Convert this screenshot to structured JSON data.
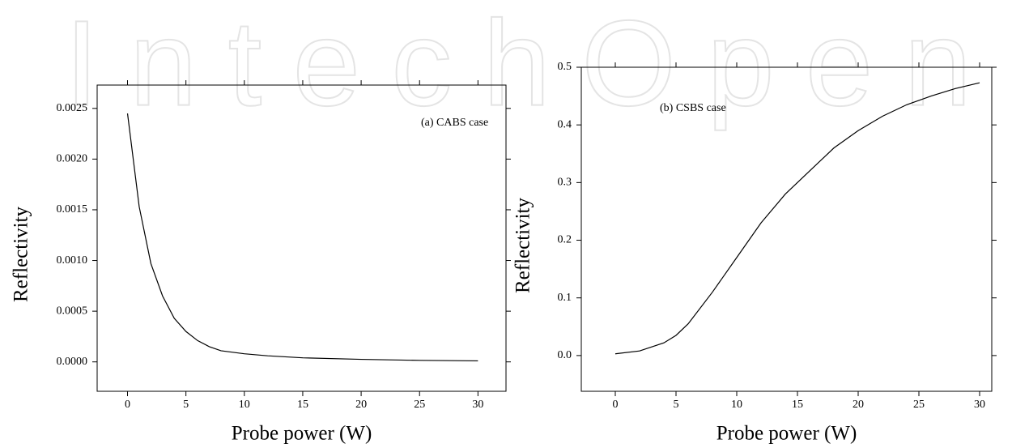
{
  "watermark": "IntechOpen",
  "chart_data": [
    {
      "type": "line",
      "annotation": "(a) CABS case",
      "xlabel": "Probe power (W)",
      "ylabel": "Reflectivity",
      "color": "#000000",
      "x": [
        0,
        1,
        2,
        3,
        4,
        5,
        6,
        7,
        8,
        10,
        12,
        15,
        20,
        25,
        30
      ],
      "values": [
        0.00245,
        0.00153,
        0.00097,
        0.00065,
        0.00043,
        0.0003,
        0.00021,
        0.00015,
        0.00011,
        8e-05,
        6e-05,
        4e-05,
        2.5e-05,
        1.5e-05,
        1e-05
      ],
      "xlim": [
        -2.6,
        32.4
      ],
      "ylim": [
        -0.00029,
        0.00273
      ],
      "xticks": [
        0,
        5,
        10,
        15,
        20,
        25,
        30
      ],
      "yticks": [
        {
          "value": 0,
          "label": "0.0000"
        },
        0.0005,
        {
          "value": 0.001,
          "label": "0.0010"
        },
        0.0015,
        {
          "value": 0.002,
          "label": "0.0020"
        },
        0.0025
      ]
    },
    {
      "type": "line",
      "annotation": "(b) CSBS case",
      "xlabel": "Probe power (W)",
      "ylabel": "Reflectivity",
      "color": "#000000",
      "x": [
        0,
        2,
        4,
        5,
        6,
        8,
        10,
        12,
        14,
        16,
        18,
        20,
        22,
        24,
        26,
        28,
        30
      ],
      "values": [
        0.003,
        0.008,
        0.022,
        0.035,
        0.055,
        0.11,
        0.17,
        0.23,
        0.28,
        0.32,
        0.36,
        0.39,
        0.415,
        0.435,
        0.45,
        0.463,
        0.473
      ],
      "xlim": [
        -2.8,
        31
      ],
      "ylim": [
        -0.062,
        0.5
      ],
      "xticks": [
        0,
        5,
        10,
        15,
        20,
        25,
        30
      ],
      "yticks": [
        {
          "value": 0,
          "label": "0.0"
        },
        0.1,
        0.2,
        0.3,
        0.4,
        0.5
      ]
    }
  ]
}
